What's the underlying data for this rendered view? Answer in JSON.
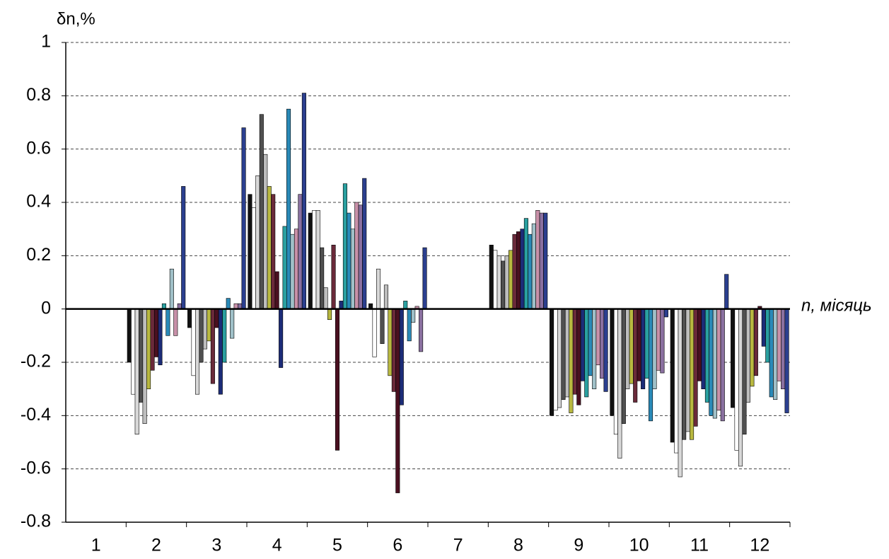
{
  "chart_data": {
    "type": "bar",
    "y_label": "δn,%",
    "x_label": "n, місяць",
    "categories": [
      "1",
      "2",
      "3",
      "4",
      "5",
      "6",
      "7",
      "8",
      "9",
      "10",
      "11",
      "12"
    ],
    "ylim": [
      -0.8,
      1
    ],
    "yticks": [
      -0.8,
      -0.6,
      -0.4,
      -0.2,
      0,
      0.2,
      0.4,
      0.6,
      0.8,
      1
    ],
    "grid": true,
    "series": [
      {
        "color": "#111111",
        "values": [
          0,
          -0.2,
          -0.07,
          0.43,
          0.36,
          0.02,
          0,
          0.24,
          -0.4,
          -0.4,
          -0.5,
          -0.37
        ]
      },
      {
        "color": "#ffffff",
        "values": [
          0,
          -0.32,
          -0.25,
          0.38,
          0.37,
          -0.18,
          0,
          0.22,
          -0.38,
          -0.47,
          -0.54,
          -0.53
        ]
      },
      {
        "color": "#d8d8d8",
        "values": [
          0,
          -0.47,
          -0.32,
          0.5,
          0.37,
          0.15,
          0,
          0.2,
          -0.37,
          -0.56,
          -0.63,
          -0.59
        ]
      },
      {
        "color": "#505050",
        "values": [
          0,
          -0.35,
          -0.2,
          0.73,
          0.23,
          -0.13,
          0,
          0.18,
          -0.34,
          -0.43,
          -0.49,
          -0.47
        ]
      },
      {
        "color": "#bdbdbd",
        "values": [
          0,
          -0.43,
          -0.15,
          0.58,
          0.08,
          0.09,
          0,
          0.2,
          -0.33,
          -0.3,
          -0.46,
          -0.35
        ]
      },
      {
        "color": "#b8b840",
        "values": [
          0,
          -0.3,
          -0.12,
          0.46,
          -0.04,
          -0.25,
          0,
          0.22,
          -0.39,
          -0.28,
          -0.49,
          -0.29
        ]
      },
      {
        "color": "#6a2a3a",
        "values": [
          0,
          -0.23,
          -0.28,
          0.43,
          0.24,
          -0.31,
          0,
          0.28,
          -0.32,
          -0.35,
          -0.44,
          -0.25
        ]
      },
      {
        "color": "#4a1020",
        "values": [
          0,
          -0.18,
          -0.07,
          0.14,
          -0.53,
          -0.69,
          0,
          0.29,
          -0.36,
          -0.27,
          -0.27,
          0.01
        ]
      },
      {
        "color": "#1c2c78",
        "values": [
          0,
          -0.21,
          -0.32,
          -0.22,
          0.03,
          -0.36,
          0,
          0.3,
          -0.27,
          -0.3,
          -0.3,
          -0.14
        ]
      },
      {
        "color": "#2aa0a0",
        "values": [
          0,
          0.02,
          -0.2,
          0.31,
          0.47,
          0.03,
          0,
          0.34,
          -0.33,
          -0.26,
          -0.35,
          -0.2
        ]
      },
      {
        "color": "#2a8ab8",
        "values": [
          0,
          -0.1,
          0.04,
          0.75,
          0.36,
          -0.12,
          0,
          0.28,
          -0.25,
          -0.42,
          -0.4,
          -0.33
        ]
      },
      {
        "color": "#a0c0c8",
        "values": [
          0,
          0.15,
          -0.11,
          0.28,
          0.3,
          -0.05,
          0,
          0.32,
          -0.3,
          -0.3,
          -0.41,
          -0.34
        ]
      },
      {
        "color": "#c890a8",
        "values": [
          0,
          -0.1,
          0.02,
          0.3,
          0.4,
          0.01,
          0,
          0.37,
          -0.21,
          -0.23,
          -0.38,
          -0.27
        ]
      },
      {
        "color": "#8a70a0",
        "values": [
          0,
          0.02,
          0.02,
          0.43,
          0.39,
          -0.16,
          0,
          0.36,
          -0.26,
          -0.24,
          -0.42,
          -0.3
        ]
      },
      {
        "color": "#2b3f8f",
        "values": [
          0,
          0.46,
          0.68,
          0.81,
          0.49,
          0.23,
          0,
          0.36,
          -0.31,
          -0.03,
          0.13,
          -0.39
        ]
      }
    ]
  }
}
